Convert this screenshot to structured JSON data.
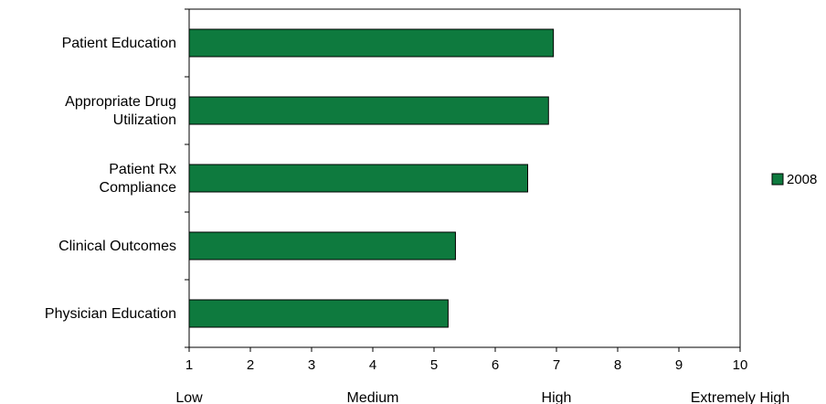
{
  "chart_data": {
    "type": "bar",
    "orientation": "horizontal",
    "categories": [
      "Patient Education",
      "Appropriate Drug Utilization",
      "Patient Rx Compliance",
      "Clinical Outcomes",
      "Physician Education"
    ],
    "category_label_lines": [
      [
        "Patient Education"
      ],
      [
        "Appropriate Drug",
        "Utilization"
      ],
      [
        "Patient Rx",
        "Compliance"
      ],
      [
        "Clinical Outcomes"
      ],
      [
        "Physician Education"
      ]
    ],
    "series": [
      {
        "name": "2008",
        "values": [
          6.95,
          6.87,
          6.53,
          5.35,
          5.23
        ],
        "color": "#0e7a3e"
      }
    ],
    "xlim": [
      1,
      10
    ],
    "x_ticks": [
      "1",
      "2",
      "3",
      "4",
      "5",
      "6",
      "7",
      "8",
      "9",
      "10"
    ],
    "scale_labels": [
      {
        "text": "Low",
        "at": 1
      },
      {
        "text": "Medium",
        "at": 4
      },
      {
        "text": "High",
        "at": 7
      },
      {
        "text": "Extremely High",
        "at": 10
      }
    ],
    "title": "",
    "xlabel": "",
    "ylabel": "",
    "grid": false,
    "legend_position": "right"
  }
}
